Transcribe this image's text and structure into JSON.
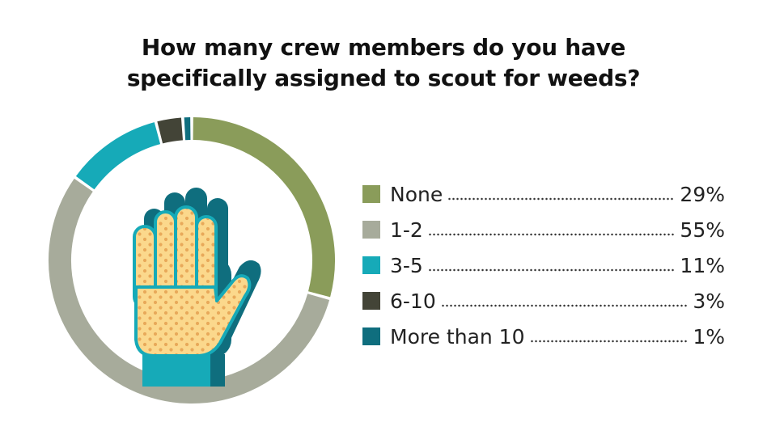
{
  "chart_data": {
    "type": "pie",
    "style": "donut",
    "title_lines": [
      "How many crew members do you have",
      "specifically assigned to scout for weeds?"
    ],
    "legend_position": "right",
    "categories": [
      "None",
      "1-2",
      "3-5",
      "6-10",
      "More than 10"
    ],
    "values": [
      29,
      55,
      11,
      3,
      1
    ],
    "value_labels": [
      "29%",
      "55%",
      "11%",
      "3%",
      "1%"
    ],
    "colors": [
      "#8a9c5a",
      "#a7ab9b",
      "#16aab8",
      "#434437",
      "#0f6e7e"
    ]
  },
  "icons": {
    "center": "raised-glove-hand-icon"
  }
}
